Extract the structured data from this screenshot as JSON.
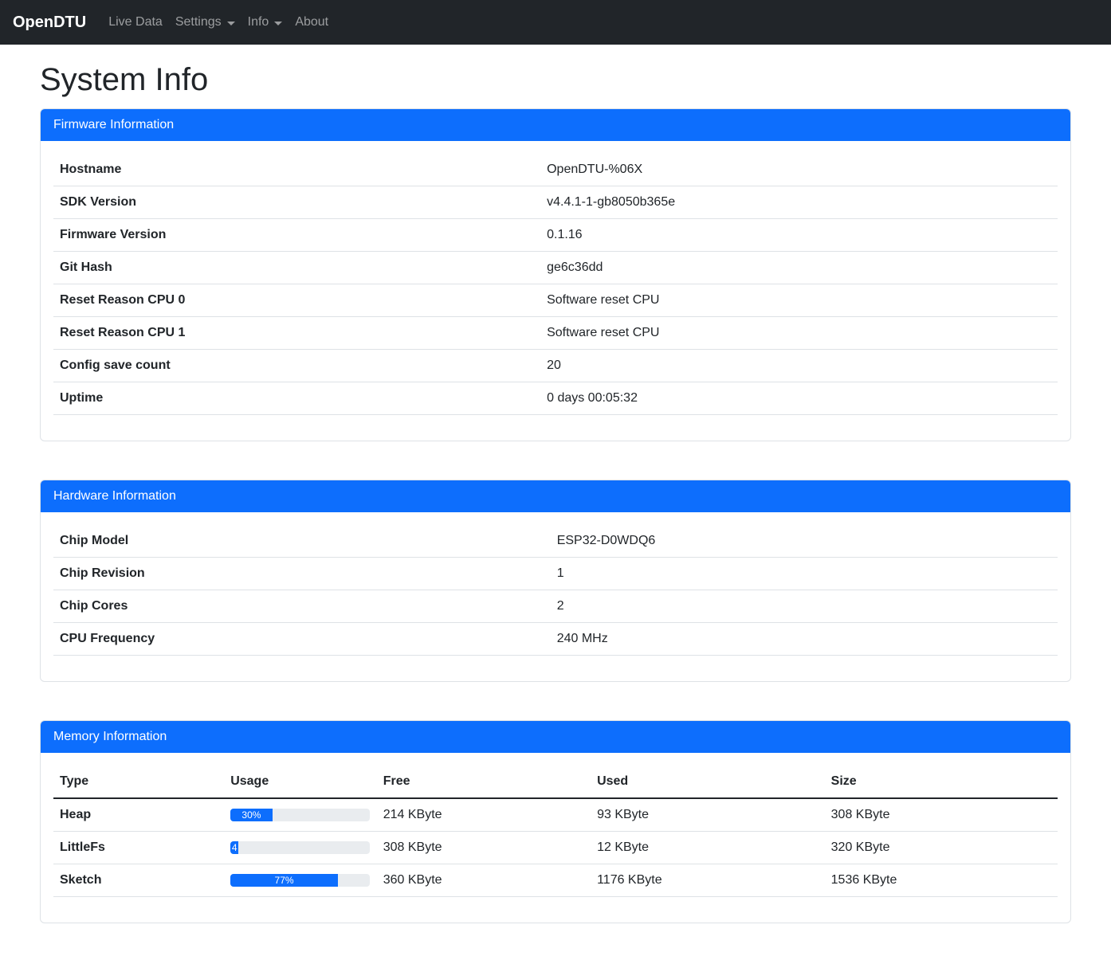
{
  "navbar": {
    "brand": "OpenDTU",
    "items": [
      {
        "label": "Live Data",
        "dropdown": false
      },
      {
        "label": "Settings",
        "dropdown": true
      },
      {
        "label": "Info",
        "dropdown": true
      },
      {
        "label": "About",
        "dropdown": false
      }
    ]
  },
  "page_title": "System Info",
  "cards": {
    "firmware": {
      "title": "Firmware Information",
      "rows": [
        {
          "label": "Hostname",
          "value": "OpenDTU-%06X"
        },
        {
          "label": "SDK Version",
          "value": "v4.4.1-1-gb8050b365e"
        },
        {
          "label": "Firmware Version",
          "value": "0.1.16"
        },
        {
          "label": "Git Hash",
          "value": "ge6c36dd"
        },
        {
          "label": "Reset Reason CPU 0",
          "value": "Software reset CPU"
        },
        {
          "label": "Reset Reason CPU 1",
          "value": "Software reset CPU"
        },
        {
          "label": "Config save count",
          "value": "20"
        },
        {
          "label": "Uptime",
          "value": "0 days 00:05:32"
        }
      ]
    },
    "hardware": {
      "title": "Hardware Information",
      "rows": [
        {
          "label": "Chip Model",
          "value": "ESP32-D0WDQ6"
        },
        {
          "label": "Chip Revision",
          "value": "1"
        },
        {
          "label": "Chip Cores",
          "value": "2"
        },
        {
          "label": "CPU Frequency",
          "value": "240 MHz"
        }
      ]
    },
    "memory": {
      "title": "Memory Information",
      "columns": [
        "Type",
        "Usage",
        "Free",
        "Used",
        "Size"
      ],
      "rows": [
        {
          "type": "Heap",
          "usage_percent": 30,
          "usage_label": "30%",
          "free": "214 KByte",
          "used": "93 KByte",
          "size": "308 KByte"
        },
        {
          "type": "LittleFs",
          "usage_percent": 4,
          "usage_label": "4",
          "free": "308 KByte",
          "used": "12 KByte",
          "size": "320 KByte"
        },
        {
          "type": "Sketch",
          "usage_percent": 77,
          "usage_label": "77%",
          "free": "360 KByte",
          "used": "1176 KByte",
          "size": "1536 KByte"
        }
      ]
    }
  },
  "colors": {
    "primary": "#0d6efd",
    "navbar_bg": "#212529",
    "progress_track": "#e9ecef",
    "card_border": "#dee2e6",
    "text": "#212529"
  }
}
